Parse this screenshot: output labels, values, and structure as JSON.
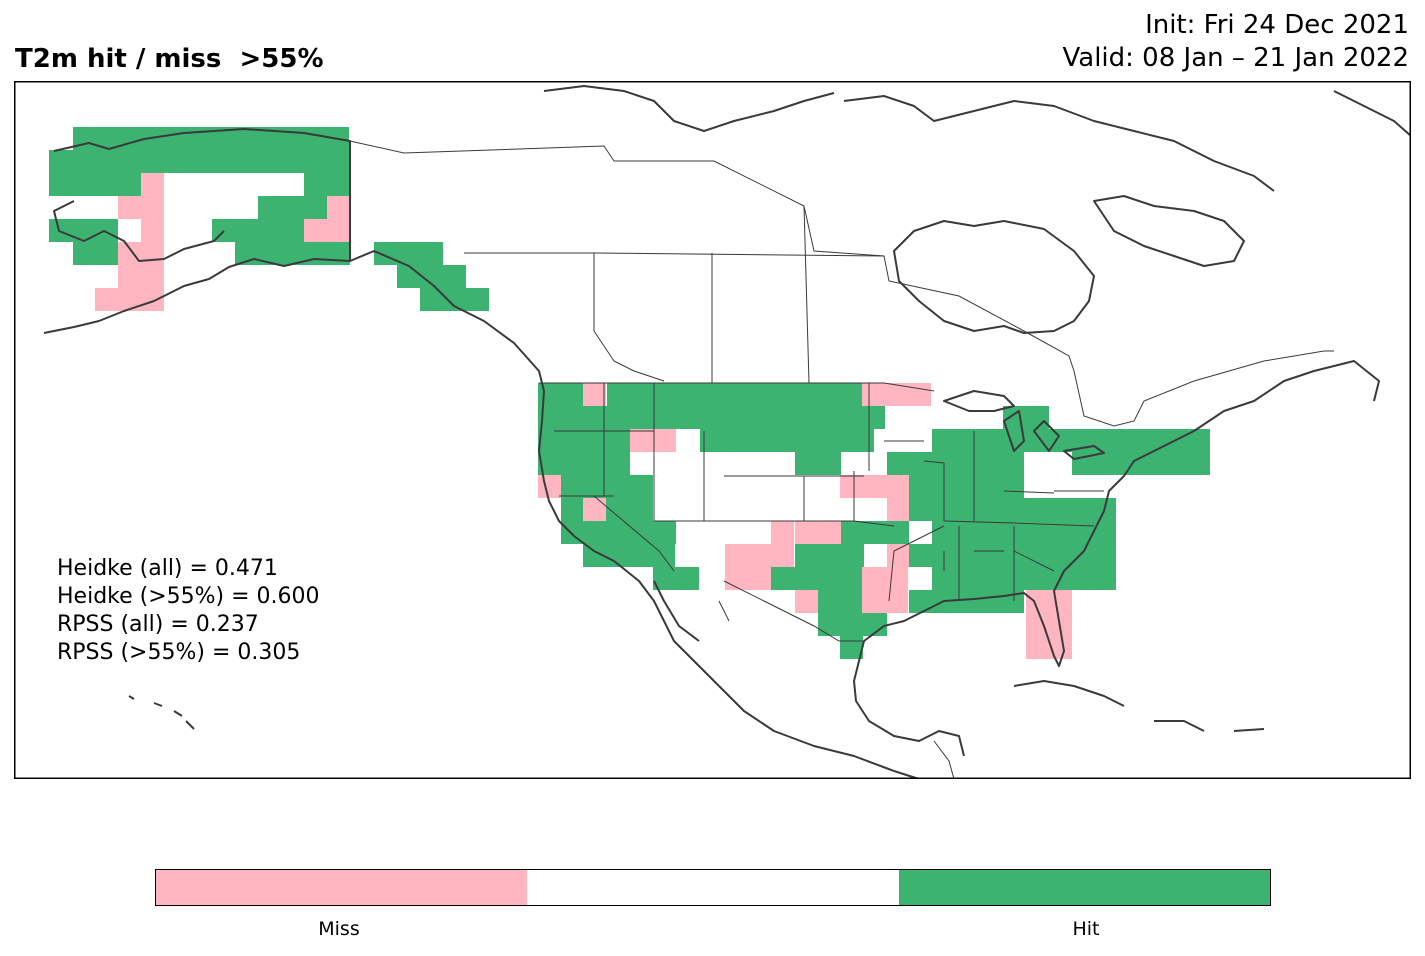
{
  "header": {
    "title": "T2m hit / miss  >55%",
    "init": "Init: Fri 24 Dec 2021",
    "valid": "Valid: 08 Jan – 21 Jan 2022"
  },
  "stats": {
    "heidke_all": "Heidke (all) = 0.471",
    "heidke_55": "Heidke (>55%) = 0.600",
    "rpss_all": "RPSS (all) = 0.237",
    "rpss_55": "RPSS (>55%) = 0.305"
  },
  "colorbar": {
    "segments": [
      "#ffb6c1",
      "#ffffff",
      "#3cb371"
    ],
    "miss_label": "Miss",
    "hit_label": "Hit"
  },
  "colors": {
    "hit": "#3cb371",
    "miss": "#ffb6c1",
    "coast": "#3a3a3a"
  }
}
